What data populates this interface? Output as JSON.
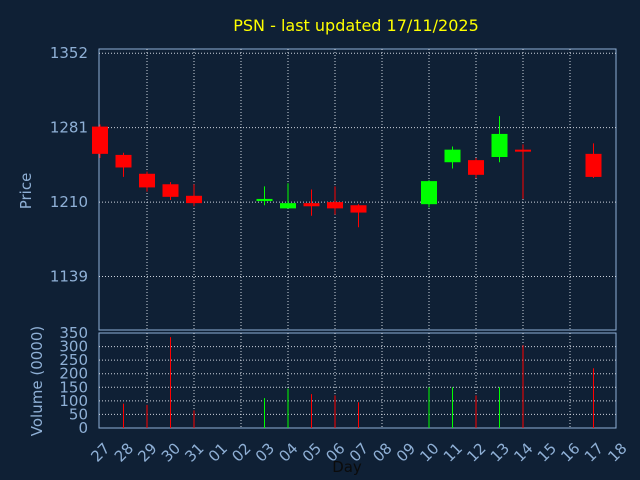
{
  "chart_data": {
    "type": "candlestick",
    "title": "PSN - last updated 17/11/2025",
    "ylabel": "Price",
    "volume_ylabel": "Volume (0000)",
    "xlabel": "Day",
    "colors": {
      "background": "#0f2035",
      "title": "#ffff00",
      "axis": "#8fb0d6",
      "up": "#00ff00",
      "down": "#ff0000",
      "grid": "#d8dde6"
    },
    "price_axis": {
      "ylim": [
        1088,
        1356
      ],
      "ticks": [
        1139,
        1210,
        1281,
        1352
      ]
    },
    "volume_axis": {
      "ylim": [
        0,
        350
      ],
      "ticks": [
        0,
        50,
        100,
        150,
        200,
        250,
        300,
        350
      ]
    },
    "days": [
      "27",
      "28",
      "29",
      "30",
      "31",
      "01",
      "02",
      "03",
      "04",
      "05",
      "06",
      "07",
      "08",
      "09",
      "10",
      "11",
      "12",
      "13",
      "14",
      "15",
      "16",
      "17",
      "18"
    ],
    "candles": [
      {
        "day": "27",
        "open": 1282,
        "close": 1256,
        "high": 1284,
        "low": 1252,
        "volume": 0
      },
      {
        "day": "28",
        "open": 1255,
        "close": 1243,
        "high": 1257,
        "low": 1234,
        "volume": 90
      },
      {
        "day": "29",
        "open": 1237,
        "close": 1224,
        "high": 1239,
        "low": 1220,
        "volume": 85
      },
      {
        "day": "30",
        "open": 1227,
        "close": 1215,
        "high": 1229,
        "low": 1212,
        "volume": 335
      },
      {
        "day": "31",
        "open": 1216,
        "close": 1209,
        "high": 1227,
        "low": 1206,
        "volume": 65
      },
      {
        "day": "03",
        "open": 1211,
        "close": 1213,
        "high": 1225,
        "low": 1207,
        "volume": 110
      },
      {
        "day": "04",
        "open": 1204,
        "close": 1209,
        "high": 1228,
        "low": 1204,
        "volume": 145
      },
      {
        "day": "05",
        "open": 1209,
        "close": 1206,
        "high": 1222,
        "low": 1197,
        "volume": 125
      },
      {
        "day": "06",
        "open": 1210,
        "close": 1204,
        "high": 1225,
        "low": 1198,
        "volume": 120
      },
      {
        "day": "07",
        "open": 1207,
        "close": 1200,
        "high": 1208,
        "low": 1186,
        "volume": 95
      },
      {
        "day": "10",
        "open": 1208,
        "close": 1230,
        "high": 1231,
        "low": 1205,
        "volume": 150
      },
      {
        "day": "11",
        "open": 1248,
        "close": 1260,
        "high": 1263,
        "low": 1242,
        "volume": 150
      },
      {
        "day": "12",
        "open": 1250,
        "close": 1236,
        "high": 1252,
        "low": 1233,
        "volume": 120
      },
      {
        "day": "13",
        "open": 1253,
        "close": 1275,
        "high": 1292,
        "low": 1248,
        "volume": 150
      },
      {
        "day": "14",
        "open": 1260,
        "close": 1259,
        "high": 1265,
        "low": 1213,
        "volume": 305
      },
      {
        "day": "17",
        "open": 1256,
        "close": 1234,
        "high": 1266,
        "low": 1233,
        "volume": 220
      }
    ]
  }
}
